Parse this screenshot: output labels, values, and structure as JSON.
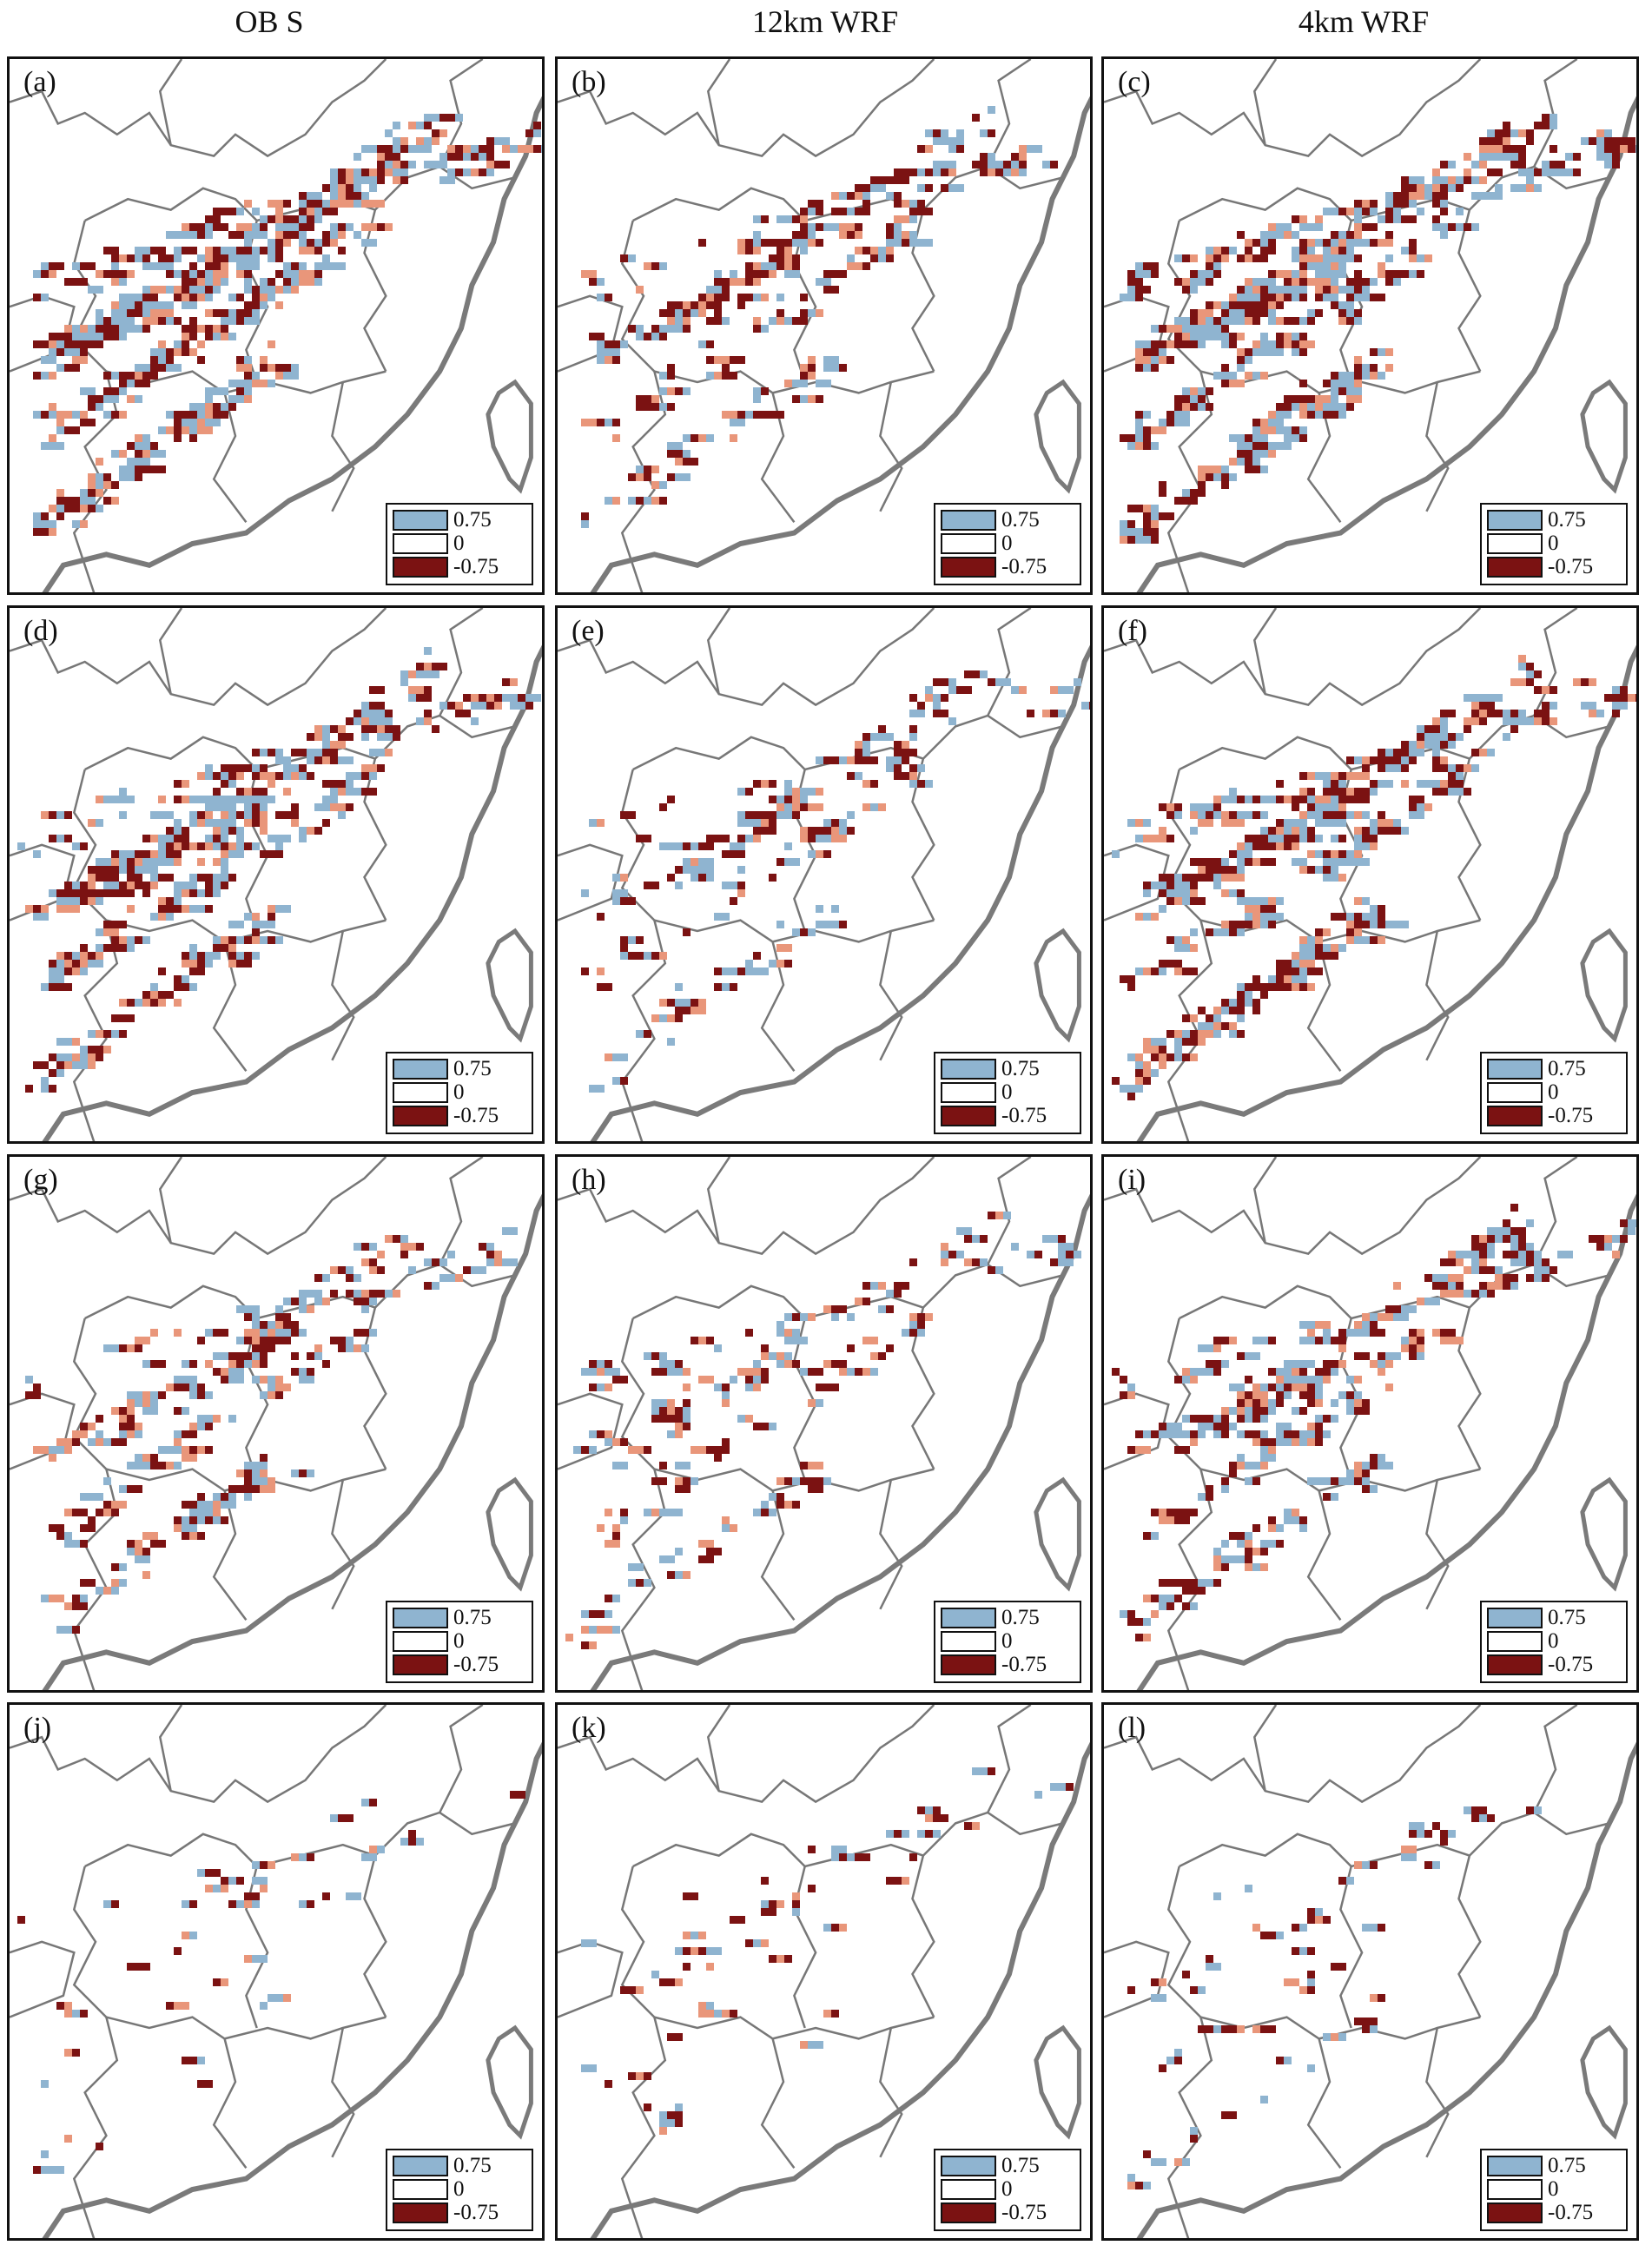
{
  "columns": [
    "OB S",
    "12km WRF",
    "4km WRF"
  ],
  "colors": {
    "positive": "#8fb4d0",
    "zero": "#ffffff",
    "negative": "#7b1212",
    "mid_positive": "#e9967a",
    "boundary": "#777777",
    "coast": "#7a7a7a"
  },
  "legend": {
    "entries": [
      {
        "label": "0.75",
        "color": "#8fb4d0"
      },
      {
        "label": "0",
        "color": "#ffffff"
      },
      {
        "label": "-0.75",
        "color": "#7b1212"
      }
    ]
  },
  "panels": [
    {
      "label": "(a)",
      "density": 1.0
    },
    {
      "label": "(b)",
      "density": 0.45
    },
    {
      "label": "(c)",
      "density": 1.0
    },
    {
      "label": "(d)",
      "density": 0.75
    },
    {
      "label": "(e)",
      "density": 0.35
    },
    {
      "label": "(f)",
      "density": 0.8
    },
    {
      "label": "(g)",
      "density": 0.45
    },
    {
      "label": "(h)",
      "density": 0.3
    },
    {
      "label": "(i)",
      "density": 0.55
    },
    {
      "label": "(j)",
      "density": 0.08
    },
    {
      "label": "(k)",
      "density": 0.1
    },
    {
      "label": "(l)",
      "density": 0.12
    }
  ]
}
